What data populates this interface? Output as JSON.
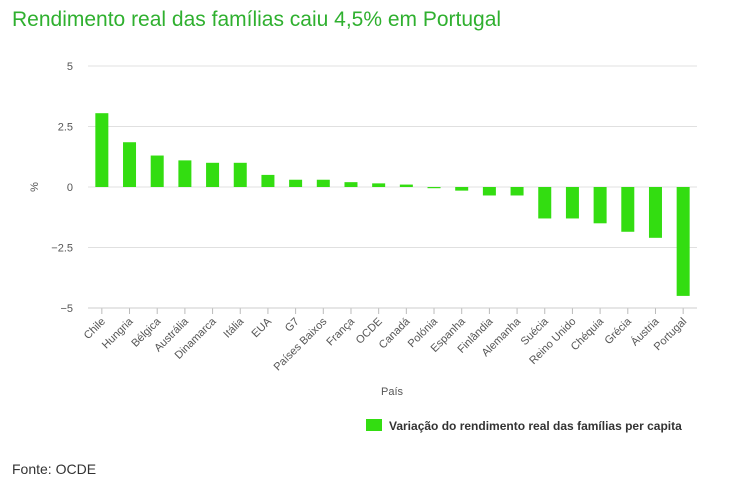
{
  "title": "Rendimento real das famílias caiu 4,5% em Portugal",
  "source": "Fonte: OCDE",
  "colors": {
    "bar": "#33dd11",
    "title": "#2fb02f",
    "grid": "#e0e0e0"
  },
  "chart_data": {
    "type": "bar",
    "title": "Rendimento real das famílias caiu 4,5% em Portugal",
    "xlabel": "País",
    "ylabel": "%",
    "ylim": [
      -5,
      5
    ],
    "yticks": [
      5,
      2.5,
      0,
      -2.5,
      -5
    ],
    "ytick_labels": [
      "5",
      "2.5",
      "0",
      "−2.5",
      "−5"
    ],
    "grid": true,
    "legend_position": "bottom-right",
    "categories": [
      "Chile",
      "Hungria",
      "Bélgica",
      "Austrália",
      "Dinamarca",
      "Itália",
      "EUA",
      "G7",
      "Países Baixos",
      "França",
      "OCDE",
      "Canadá",
      "Polónia",
      "Espanha",
      "Finlândia",
      "Alemanha",
      "Suécia",
      "Reino Unido",
      "Chéquia",
      "Grécia",
      "Áustria",
      "Portugal"
    ],
    "series": [
      {
        "name": "Variação do rendimento real das famílias per capita",
        "values": [
          3.05,
          1.85,
          1.3,
          1.1,
          1.0,
          1.0,
          0.5,
          0.3,
          0.3,
          0.2,
          0.15,
          0.1,
          -0.05,
          -0.15,
          -0.35,
          -0.35,
          -1.3,
          -1.3,
          -1.5,
          -1.85,
          -2.1,
          -4.5
        ]
      }
    ]
  }
}
